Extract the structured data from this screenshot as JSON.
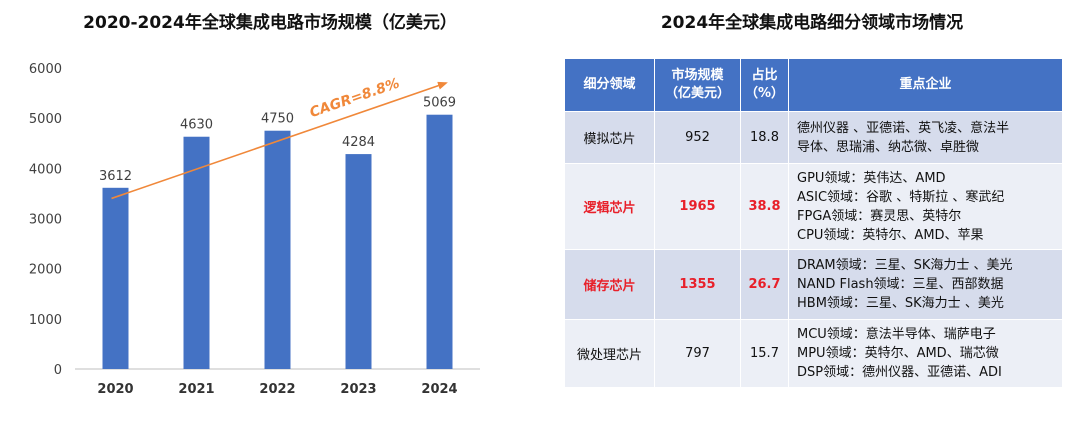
{
  "left_title": "2020-2024年全球集成电路市场规模（亿美元）",
  "right_title": "2024年全球集成电路细分领域市场情况",
  "chart_data": {
    "type": "bar",
    "title": "2020-2024年全球集成电路市场规模（亿美元）",
    "categories": [
      "2020",
      "2021",
      "2022",
      "2023",
      "2024"
    ],
    "values": [
      3612,
      4630,
      4750,
      4284,
      5069
    ],
    "ylim": [
      0,
      6000
    ],
    "yticks": [
      "0",
      "1000",
      "2000",
      "3000",
      "4000",
      "5000",
      "6000"
    ],
    "xlabel": "",
    "ylabel": "",
    "annotation": "CAGR=8.8%",
    "colors": {
      "bar": "#4472c4",
      "trend": "#f0883a",
      "annotation": "#f0883a"
    }
  },
  "table": {
    "headers": {
      "segment": "细分领域",
      "size_line1": "市场规模",
      "size_line2": "（亿美元）",
      "share_line1": "占比",
      "share_line2": "（%）",
      "companies": "重点企业"
    },
    "rows": [
      {
        "segment": "模拟芯片",
        "size": "952",
        "share": "18.8",
        "companies": [
          "德州仪器 、亚德诺、英飞凌、意法半",
          "导体、思瑞浦、纳芯微、卓胜微"
        ]
      },
      {
        "segment": "逻辑芯片",
        "size": "1965",
        "share": "38.8",
        "companies": [
          "GPU领域：英伟达、AMD",
          "ASIC领域：谷歌 、特斯拉 、寒武纪",
          "FPGA领域：赛灵思、英特尔",
          "CPU领域：英特尔、AMD、苹果"
        ]
      },
      {
        "segment": "储存芯片",
        "size": "1355",
        "share": "26.7",
        "companies": [
          "DRAM领域：三星、SK海力士 、美光",
          "NAND Flash领域：三星、西部数据",
          "HBM领域：三星、SK海力士 、美光"
        ]
      },
      {
        "segment": "微处理芯片",
        "size": "797",
        "share": "15.7",
        "companies": [
          "MCU领域：意法半导体、瑞萨电子",
          "MPU领域：英特尔、AMD、瑞芯微",
          "DSP领域：德州仪器、亚德诺、ADI"
        ]
      }
    ],
    "highlight_color": "#e8202a",
    "header_color": "#4472c4"
  }
}
